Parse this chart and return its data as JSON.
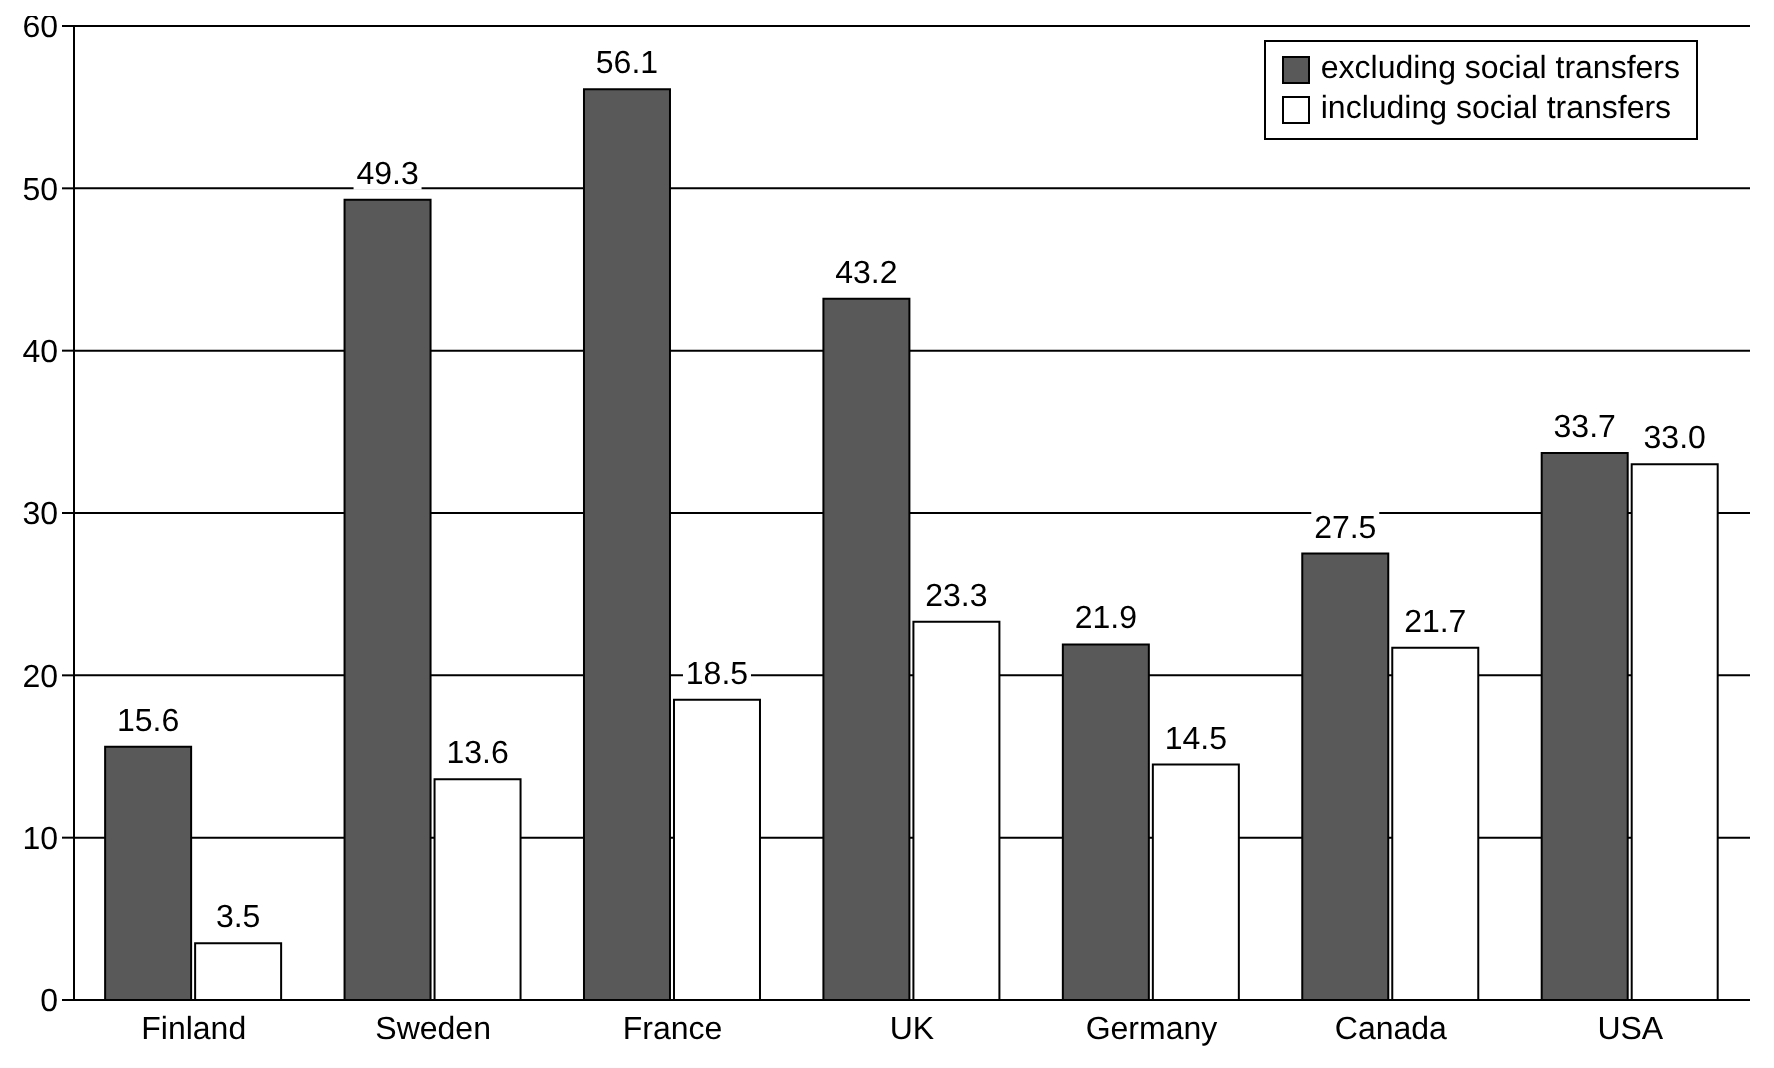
{
  "chart_data": {
    "type": "bar",
    "categories": [
      "Finland",
      "Sweden",
      "France",
      "UK",
      "Germany",
      "Canada",
      "USA"
    ],
    "series": [
      {
        "name": "excluding social transfers",
        "color": "#595959",
        "values": [
          15.6,
          49.3,
          56.1,
          43.2,
          21.9,
          27.5,
          33.7
        ],
        "value_labels": [
          "15.6",
          "49.3",
          "56.1",
          "43.2",
          "21.9",
          "27.5",
          "33.7"
        ]
      },
      {
        "name": "including social transfers",
        "color": "#ffffff",
        "values": [
          3.5,
          13.6,
          18.5,
          23.3,
          14.5,
          21.7,
          33.0
        ],
        "value_labels": [
          "3.5",
          "13.6",
          "18.5",
          "23.3",
          "14.5",
          "21.7",
          "33.0"
        ]
      }
    ],
    "ylim": [
      0,
      60
    ],
    "yticks": [
      0,
      10,
      20,
      30,
      40,
      50,
      60
    ],
    "grid": "y",
    "legend": "top right"
  }
}
